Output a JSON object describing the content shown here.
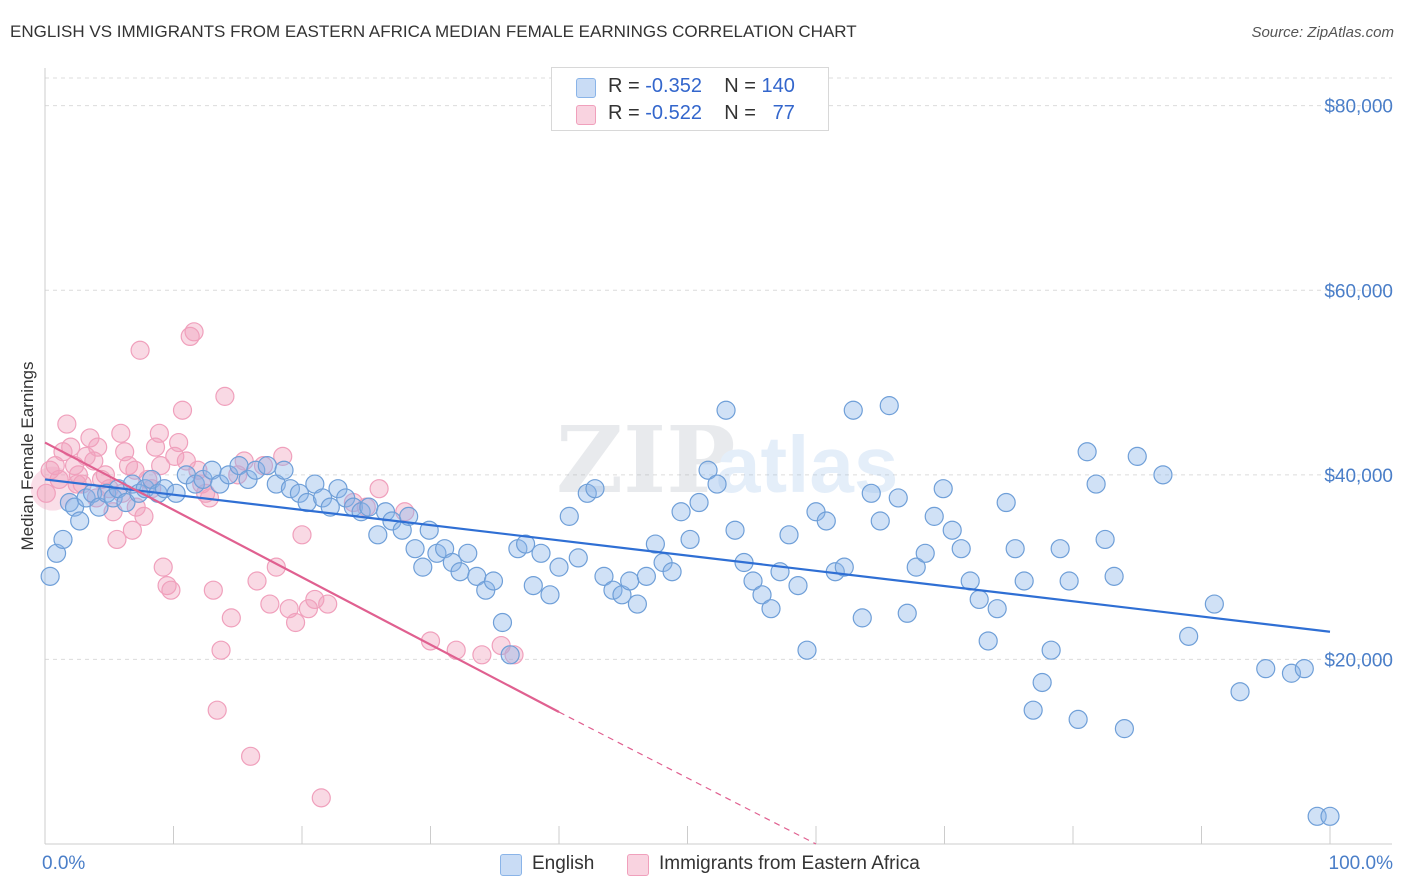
{
  "header": {
    "title": "ENGLISH VS IMMIGRANTS FROM EASTERN AFRICA MEDIAN FEMALE EARNINGS CORRELATION CHART",
    "source": "Source: ZipAtlas.com"
  },
  "watermark": {
    "part1": "ZIP",
    "part2": "atlas"
  },
  "legend": {
    "english": {
      "r_label": "R = ",
      "r_value": "-0.352",
      "n_label": "N = ",
      "n_value": "140",
      "color": "#8ab4e8"
    },
    "immigrants": {
      "r_label": "R = ",
      "r_value": "-0.522",
      "n_label": "N = ",
      "n_value": "77",
      "color": "#f0a0bc"
    }
  },
  "chart_data": {
    "type": "scatter",
    "title": "ENGLISH VS IMMIGRANTS FROM EASTERN AFRICA MEDIAN FEMALE EARNINGS CORRELATION CHART",
    "xlabel": "",
    "ylabel": "Median Female Earnings",
    "xlim": [
      0,
      100
    ],
    "ylim": [
      0,
      83000
    ],
    "x_tick_labels": [
      "0.0%",
      "100.0%"
    ],
    "y_ticks": [
      20000,
      40000,
      60000,
      80000
    ],
    "y_tick_labels": [
      "$20,000",
      "$40,000",
      "$60,000",
      "$80,000"
    ],
    "grid": true,
    "legend_position": "bottom",
    "series": [
      {
        "name": "English",
        "color": "#8ab4e8",
        "line_color": "#2f6fd4",
        "trend": {
          "x0": 0,
          "y0": 39500,
          "x1": 100,
          "y1": 23000
        },
        "points": [
          [
            0.4,
            29000
          ],
          [
            0.9,
            31500
          ],
          [
            1.4,
            33000
          ],
          [
            1.9,
            37000
          ],
          [
            2.3,
            36500
          ],
          [
            2.7,
            35000
          ],
          [
            3.2,
            37500
          ],
          [
            3.7,
            38000
          ],
          [
            4.2,
            36500
          ],
          [
            4.8,
            38000
          ],
          [
            5.3,
            37500
          ],
          [
            5.7,
            38500
          ],
          [
            6.3,
            37000
          ],
          [
            6.8,
            39000
          ],
          [
            7.3,
            38000
          ],
          [
            7.8,
            38500
          ],
          [
            8.3,
            39500
          ],
          [
            8.8,
            38000
          ],
          [
            9.3,
            38500
          ],
          [
            10.2,
            38000
          ],
          [
            11.0,
            40000
          ],
          [
            11.7,
            39000
          ],
          [
            12.3,
            39500
          ],
          [
            13.0,
            40500
          ],
          [
            13.6,
            39000
          ],
          [
            14.3,
            40000
          ],
          [
            15.1,
            41000
          ],
          [
            15.8,
            39500
          ],
          [
            16.4,
            40500
          ],
          [
            17.3,
            41000
          ],
          [
            18.0,
            39000
          ],
          [
            18.6,
            40500
          ],
          [
            19.1,
            38500
          ],
          [
            19.8,
            38000
          ],
          [
            20.4,
            37000
          ],
          [
            21.0,
            39000
          ],
          [
            21.6,
            37500
          ],
          [
            22.2,
            36500
          ],
          [
            22.8,
            38500
          ],
          [
            23.4,
            37500
          ],
          [
            24.0,
            36500
          ],
          [
            24.6,
            36000
          ],
          [
            25.2,
            36500
          ],
          [
            25.9,
            33500
          ],
          [
            26.5,
            36000
          ],
          [
            27.0,
            35000
          ],
          [
            27.8,
            34000
          ],
          [
            28.3,
            35500
          ],
          [
            28.8,
            32000
          ],
          [
            29.4,
            30000
          ],
          [
            29.9,
            34000
          ],
          [
            30.5,
            31500
          ],
          [
            31.1,
            32000
          ],
          [
            31.7,
            30500
          ],
          [
            32.3,
            29500
          ],
          [
            32.9,
            31500
          ],
          [
            33.6,
            29000
          ],
          [
            34.3,
            27500
          ],
          [
            34.9,
            28500
          ],
          [
            35.6,
            24000
          ],
          [
            36.2,
            20500
          ],
          [
            36.8,
            32000
          ],
          [
            37.4,
            32500
          ],
          [
            38.0,
            28000
          ],
          [
            38.6,
            31500
          ],
          [
            39.3,
            27000
          ],
          [
            40.0,
            30000
          ],
          [
            40.8,
            35500
          ],
          [
            41.5,
            31000
          ],
          [
            42.2,
            38000
          ],
          [
            42.8,
            38500
          ],
          [
            43.5,
            29000
          ],
          [
            44.2,
            27500
          ],
          [
            44.9,
            27000
          ],
          [
            45.5,
            28500
          ],
          [
            46.1,
            26000
          ],
          [
            46.8,
            29000
          ],
          [
            47.5,
            32500
          ],
          [
            48.1,
            30500
          ],
          [
            48.8,
            29500
          ],
          [
            49.5,
            36000
          ],
          [
            50.2,
            33000
          ],
          [
            50.9,
            37000
          ],
          [
            51.6,
            40500
          ],
          [
            52.3,
            39000
          ],
          [
            53.0,
            47000
          ],
          [
            53.7,
            34000
          ],
          [
            54.4,
            30500
          ],
          [
            55.1,
            28500
          ],
          [
            55.8,
            27000
          ],
          [
            56.5,
            25500
          ],
          [
            57.2,
            29500
          ],
          [
            57.9,
            33500
          ],
          [
            58.6,
            28000
          ],
          [
            59.3,
            21000
          ],
          [
            60.0,
            36000
          ],
          [
            60.8,
            35000
          ],
          [
            61.5,
            29500
          ],
          [
            62.2,
            30000
          ],
          [
            62.9,
            47000
          ],
          [
            63.6,
            24500
          ],
          [
            64.3,
            38000
          ],
          [
            65.0,
            35000
          ],
          [
            65.7,
            47500
          ],
          [
            66.4,
            37500
          ],
          [
            67.1,
            25000
          ],
          [
            67.8,
            30000
          ],
          [
            68.5,
            31500
          ],
          [
            69.2,
            35500
          ],
          [
            69.9,
            38500
          ],
          [
            70.6,
            34000
          ],
          [
            71.3,
            32000
          ],
          [
            72.0,
            28500
          ],
          [
            72.7,
            26500
          ],
          [
            73.4,
            22000
          ],
          [
            74.1,
            25500
          ],
          [
            74.8,
            37000
          ],
          [
            75.5,
            32000
          ],
          [
            76.2,
            28500
          ],
          [
            76.9,
            14500
          ],
          [
            77.6,
            17500
          ],
          [
            78.3,
            21000
          ],
          [
            79.0,
            32000
          ],
          [
            79.7,
            28500
          ],
          [
            80.4,
            13500
          ],
          [
            81.1,
            42500
          ],
          [
            81.8,
            39000
          ],
          [
            82.5,
            33000
          ],
          [
            83.2,
            29000
          ],
          [
            84.0,
            12500
          ],
          [
            85.0,
            42000
          ],
          [
            87.0,
            40000
          ],
          [
            89.0,
            22500
          ],
          [
            91.0,
            26000
          ],
          [
            93.0,
            16500
          ],
          [
            95.0,
            19000
          ],
          [
            97.0,
            18500
          ],
          [
            99.0,
            3000
          ],
          [
            100.0,
            3000
          ],
          [
            98.0,
            19000
          ]
        ]
      },
      {
        "name": "Immigrants from Eastern Africa",
        "color": "#f0a0bc",
        "line_color": "#e06090",
        "trend": {
          "x0": 0,
          "y0": 43500,
          "x1": 40,
          "y1": 14300
        },
        "trend_dashed": {
          "x0": 40,
          "y0": 14300,
          "x1": 60,
          "y1": 0
        },
        "points": [
          [
            0.1,
            38000
          ],
          [
            0.4,
            40500
          ],
          [
            0.8,
            41000
          ],
          [
            1.1,
            39500
          ],
          [
            1.4,
            42500
          ],
          [
            1.7,
            45500
          ],
          [
            2.0,
            43000
          ],
          [
            2.3,
            41000
          ],
          [
            2.6,
            40000
          ],
          [
            2.9,
            39000
          ],
          [
            3.2,
            42000
          ],
          [
            3.5,
            44000
          ],
          [
            3.8,
            41500
          ],
          [
            4.1,
            43000
          ],
          [
            4.4,
            39500
          ],
          [
            4.7,
            40000
          ],
          [
            5.0,
            38500
          ],
          [
            5.3,
            36000
          ],
          [
            5.6,
            33000
          ],
          [
            5.9,
            44500
          ],
          [
            6.2,
            42500
          ],
          [
            6.5,
            41000
          ],
          [
            6.8,
            34000
          ],
          [
            7.1,
            36500
          ],
          [
            7.4,
            53500
          ],
          [
            7.7,
            35500
          ],
          [
            8.0,
            39500
          ],
          [
            8.3,
            38500
          ],
          [
            8.6,
            43000
          ],
          [
            8.9,
            44500
          ],
          [
            9.2,
            30000
          ],
          [
            9.5,
            28000
          ],
          [
            9.8,
            27500
          ],
          [
            10.1,
            42000
          ],
          [
            10.4,
            43500
          ],
          [
            10.7,
            47000
          ],
          [
            11.0,
            41500
          ],
          [
            11.3,
            55000
          ],
          [
            11.6,
            55500
          ],
          [
            11.9,
            40500
          ],
          [
            12.2,
            39000
          ],
          [
            12.5,
            38000
          ],
          [
            12.8,
            37500
          ],
          [
            13.1,
            27500
          ],
          [
            13.4,
            14500
          ],
          [
            13.7,
            21000
          ],
          [
            14.0,
            48500
          ],
          [
            14.5,
            24500
          ],
          [
            15.0,
            40000
          ],
          [
            15.5,
            41500
          ],
          [
            16.0,
            9500
          ],
          [
            16.5,
            28500
          ],
          [
            17.0,
            41000
          ],
          [
            17.5,
            26000
          ],
          [
            18.0,
            30000
          ],
          [
            18.5,
            42000
          ],
          [
            19.0,
            25500
          ],
          [
            19.5,
            24000
          ],
          [
            20.0,
            33500
          ],
          [
            20.5,
            25500
          ],
          [
            21.0,
            26500
          ],
          [
            21.5,
            5000
          ],
          [
            22.0,
            26000
          ],
          [
            24.0,
            37000
          ],
          [
            25.0,
            36500
          ],
          [
            26.0,
            38500
          ],
          [
            28.0,
            36000
          ],
          [
            30.0,
            22000
          ],
          [
            32.0,
            21000
          ],
          [
            34.0,
            20500
          ],
          [
            35.5,
            21500
          ],
          [
            36.5,
            20500
          ],
          [
            2.5,
            39000
          ],
          [
            4.0,
            37500
          ],
          [
            6.0,
            38000
          ],
          [
            7.0,
            40500
          ],
          [
            9.0,
            41000
          ]
        ]
      }
    ]
  }
}
